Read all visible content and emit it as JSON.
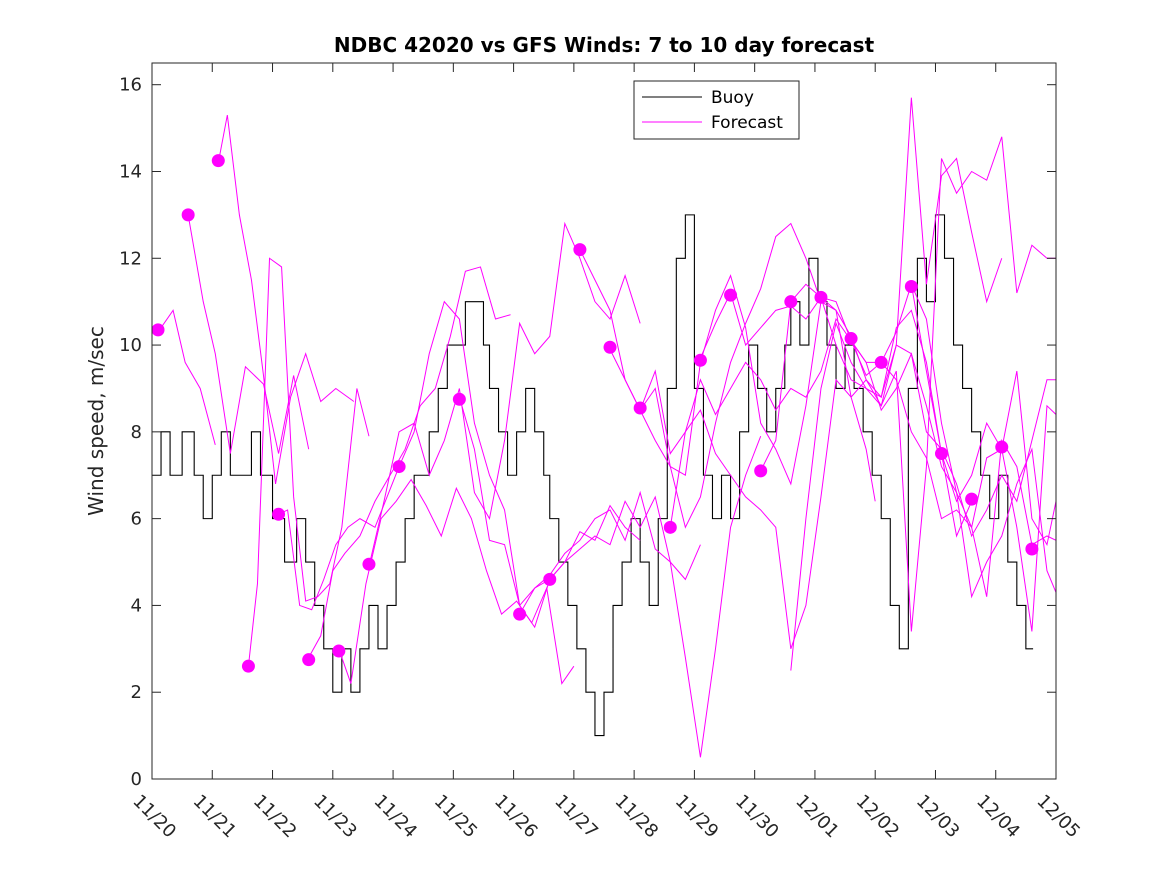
{
  "chart_data": {
    "type": "line",
    "title": "NDBC 42020 vs GFS Winds: 7 to 10 day forecast",
    "xlabel": "",
    "ylabel": "Wind speed, m/sec",
    "xlim": [
      0,
      15
    ],
    "ylim": [
      0,
      16.5
    ],
    "xticks": [
      0,
      1,
      2,
      3,
      4,
      5,
      6,
      7,
      8,
      9,
      10,
      11,
      12,
      13,
      14,
      15
    ],
    "xtick_labels": [
      "11/20",
      "11/21",
      "11/22",
      "11/23",
      "11/24",
      "11/25",
      "11/26",
      "11/27",
      "11/28",
      "11/29",
      "11/30",
      "12/01",
      "12/02",
      "12/03",
      "12/04",
      "12/05"
    ],
    "yticks": [
      0,
      2,
      4,
      6,
      8,
      10,
      12,
      14,
      16
    ],
    "ytick_labels": [
      "0",
      "2",
      "4",
      "6",
      "8",
      "10",
      "12",
      "14",
      "16"
    ],
    "legend": {
      "position": "top-center",
      "entries": [
        "Buoy",
        "Forecast"
      ]
    },
    "colors": {
      "buoy": "#000000",
      "forecast": "#ff00ff"
    },
    "series": [
      {
        "name": "Buoy",
        "style": "step",
        "x": [
          0,
          0.15,
          0.3,
          0.5,
          0.7,
          0.85,
          1.0,
          1.15,
          1.3,
          1.5,
          1.65,
          1.8,
          2.0,
          2.2,
          2.4,
          2.55,
          2.7,
          2.85,
          3.0,
          3.15,
          3.3,
          3.45,
          3.6,
          3.75,
          3.9,
          4.05,
          4.2,
          4.35,
          4.5,
          4.6,
          4.75,
          4.9,
          5.05,
          5.2,
          5.35,
          5.5,
          5.6,
          5.75,
          5.9,
          6.05,
          6.2,
          6.35,
          6.5,
          6.6,
          6.75,
          6.9,
          7.05,
          7.2,
          7.35,
          7.5,
          7.65,
          7.8,
          7.95,
          8.1,
          8.25,
          8.4,
          8.55,
          8.7,
          8.85,
          9.0,
          9.15,
          9.3,
          9.45,
          9.6,
          9.75,
          9.9,
          10.05,
          10.2,
          10.35,
          10.5,
          10.6,
          10.75,
          10.9,
          11.05,
          11.2,
          11.35,
          11.5,
          11.65,
          11.8,
          11.95,
          12.1,
          12.25,
          12.4,
          12.55,
          12.7,
          12.85,
          13.0,
          13.15,
          13.3,
          13.45,
          13.6,
          13.75,
          13.9,
          14.05,
          14.2,
          14.35,
          14.5
        ],
        "values": [
          7,
          8,
          7,
          8,
          7,
          6,
          7,
          8,
          7,
          7,
          8,
          7,
          6,
          5,
          6,
          5,
          4,
          3,
          2,
          3,
          2,
          3,
          4,
          3,
          4,
          5,
          6,
          7,
          7,
          8,
          9,
          10,
          10,
          11,
          11,
          10,
          9,
          8,
          7,
          8,
          9,
          8,
          7,
          6,
          5,
          4,
          3,
          2,
          1,
          2,
          4,
          5,
          6,
          5,
          4,
          6,
          9,
          12,
          13,
          9,
          7,
          6,
          7,
          6,
          8,
          10,
          9,
          8,
          9,
          10,
          11,
          10,
          12,
          11,
          10,
          9,
          10,
          9,
          8,
          7,
          6,
          4,
          3,
          9,
          12,
          11,
          13,
          12,
          10,
          9,
          8,
          7,
          6,
          7,
          5,
          4,
          3
        ]
      },
      {
        "name": "Forecast",
        "x": [
          0.1,
          0.35,
          0.55,
          0.8,
          1.05
        ],
        "values": [
          10.3,
          10.8,
          9.6,
          9.0,
          7.7
        ]
      },
      {
        "name": "Forecast",
        "x": [
          0.6,
          0.85,
          1.05,
          1.3,
          1.55,
          1.85,
          2.1,
          2.35,
          2.6
        ],
        "values": [
          13.0,
          11.0,
          9.8,
          7.5,
          9.5,
          9.1,
          7.5,
          9.3,
          7.6
        ]
      },
      {
        "name": "Forecast",
        "x": [
          1.1,
          1.25,
          1.45,
          1.65,
          1.85,
          2.05,
          2.3,
          2.55,
          2.8,
          3.05,
          3.35
        ],
        "values": [
          14.2,
          15.3,
          13.0,
          11.5,
          9.3,
          6.8,
          8.8,
          9.8,
          8.7,
          9.0,
          8.7
        ]
      },
      {
        "name": "Forecast",
        "x": [
          1.6,
          1.75,
          1.95,
          2.15,
          2.35,
          2.55,
          2.75,
          2.95,
          3.15,
          3.4,
          3.6
        ],
        "values": [
          2.6,
          4.5,
          12.0,
          11.8,
          6.5,
          4.1,
          4.2,
          4.5,
          5.8,
          9.0,
          7.9
        ]
      },
      {
        "name": "Forecast",
        "x": [
          2.1,
          2.25,
          2.45,
          2.65,
          2.85,
          3.05,
          3.25,
          3.45,
          3.7,
          3.9,
          4.1
        ],
        "values": [
          6.1,
          6.2,
          4.0,
          3.9,
          4.6,
          5.4,
          5.8,
          6.0,
          5.8,
          6.5,
          7.2
        ]
      },
      {
        "name": "Forecast",
        "x": [
          2.6,
          2.8,
          3.0,
          3.2,
          3.45,
          3.7,
          3.95,
          4.2,
          4.45,
          4.7,
          4.95,
          5.2,
          5.45,
          5.7,
          5.95
        ],
        "values": [
          2.8,
          3.3,
          4.8,
          5.2,
          5.6,
          6.4,
          7.0,
          7.6,
          8.6,
          9.0,
          10.2,
          11.7,
          11.8,
          10.6,
          10.7
        ]
      },
      {
        "name": "Forecast",
        "x": [
          3.1,
          3.3,
          3.55,
          3.8,
          4.05,
          4.3,
          4.55,
          4.8,
          5.05,
          5.3,
          5.55,
          5.8,
          6.05,
          6.3,
          6.55,
          6.8,
          7.0
        ],
        "values": [
          3.0,
          2.2,
          4.5,
          6.0,
          6.4,
          6.9,
          6.3,
          5.6,
          6.7,
          6.0,
          4.8,
          3.8,
          4.1,
          3.6,
          4.4,
          2.2,
          2.6
        ]
      },
      {
        "name": "Forecast",
        "x": [
          3.6,
          3.85,
          4.1,
          4.35,
          4.6,
          4.85,
          5.1,
          5.35,
          5.6,
          5.85,
          6.1,
          6.35,
          6.6,
          6.85,
          7.1,
          7.35,
          7.6,
          7.85,
          8.1
        ],
        "values": [
          4.9,
          6.4,
          8.0,
          8.2,
          7.0,
          7.8,
          9.0,
          6.6,
          6.0,
          7.8,
          10.5,
          9.8,
          10.2,
          12.8,
          12.0,
          11.0,
          10.6,
          11.6,
          10.5
        ]
      },
      {
        "name": "Forecast",
        "x": [
          4.1,
          4.35,
          4.6,
          4.85,
          5.1,
          5.35,
          5.6,
          5.85,
          6.1,
          6.35,
          6.6,
          6.85,
          7.1,
          7.35,
          7.6,
          7.85,
          8.1
        ],
        "values": [
          7.2,
          8.0,
          9.8,
          11.0,
          10.6,
          8.2,
          7.0,
          6.2,
          4.0,
          3.5,
          4.6,
          5.0,
          5.7,
          5.5,
          6.3,
          5.8,
          5.5
        ]
      },
      {
        "name": "Forecast",
        "x": [
          5.1,
          5.35,
          5.6,
          5.85,
          6.1,
          6.35,
          6.6,
          6.85,
          7.1,
          7.35,
          7.6,
          7.85,
          8.1,
          8.35,
          8.6,
          8.85,
          9.1
        ],
        "values": [
          8.8,
          7.6,
          5.5,
          5.4,
          4.0,
          4.4,
          4.7,
          5.2,
          5.5,
          6.0,
          6.2,
          5.5,
          6.6,
          5.3,
          5.0,
          4.6,
          5.4
        ]
      },
      {
        "name": "Forecast",
        "x": [
          6.1,
          6.35,
          6.6,
          6.85,
          7.1,
          7.35,
          7.6,
          7.85,
          8.1,
          8.35,
          8.6,
          8.85,
          9.1,
          9.35,
          9.6,
          9.85,
          10.1
        ],
        "values": [
          3.8,
          4.4,
          4.6,
          5.0,
          5.3,
          5.6,
          5.4,
          6.4,
          5.8,
          6.5,
          5.0,
          2.8,
          0.5,
          3.0,
          5.8,
          7.0,
          7.9
        ]
      },
      {
        "name": "Forecast",
        "x": [
          7.1,
          7.35,
          7.6,
          7.85,
          8.1,
          8.35,
          8.6,
          8.85,
          9.1,
          9.35,
          9.6,
          9.85,
          10.1,
          10.35,
          10.6,
          10.85,
          11.1
        ],
        "values": [
          12.2,
          11.5,
          10.8,
          9.2,
          8.5,
          7.8,
          7.2,
          5.8,
          6.5,
          8.2,
          9.6,
          10.5,
          11.3,
          12.5,
          12.8,
          12.0,
          11.0
        ]
      },
      {
        "name": "Forecast",
        "x": [
          7.6,
          7.85,
          8.1,
          8.35,
          8.6,
          8.85,
          9.1,
          9.35,
          9.6,
          9.85,
          10.1,
          10.35,
          10.6,
          10.85,
          11.1,
          11.35,
          11.6,
          11.85,
          12.0
        ],
        "values": [
          9.9,
          9.2,
          8.5,
          9.0,
          7.2,
          7.0,
          9.6,
          10.8,
          11.6,
          10.4,
          8.2,
          7.6,
          6.8,
          8.6,
          11.0,
          10.8,
          8.8,
          7.6,
          6.4
        ]
      },
      {
        "name": "Forecast",
        "x": [
          8.1,
          8.35,
          8.6,
          8.85,
          9.1,
          9.35,
          9.6,
          9.85,
          10.1,
          10.35,
          10.6,
          10.85,
          11.1,
          11.35,
          11.6,
          11.85,
          12.1
        ],
        "values": [
          8.5,
          9.4,
          7.5,
          8.0,
          9.2,
          8.4,
          9.0,
          9.6,
          9.2,
          8.5,
          9.0,
          8.8,
          9.4,
          10.6,
          10.1,
          9.3,
          9.6
        ]
      },
      {
        "name": "Forecast",
        "x": [
          8.6,
          8.85,
          9.1,
          9.35,
          9.6,
          9.85,
          10.1,
          10.35,
          10.6,
          10.85,
          11.1,
          11.35,
          11.6,
          11.85,
          12.1,
          12.35,
          12.6,
          12.85,
          13.1
        ],
        "values": [
          5.8,
          8.0,
          8.5,
          7.5,
          7.0,
          6.5,
          6.2,
          5.8,
          3.0,
          4.0,
          6.5,
          9.2,
          8.8,
          9.2,
          8.8,
          10.4,
          10.8,
          9.6,
          7.5
        ]
      },
      {
        "name": "Forecast",
        "x": [
          9.1,
          9.35,
          9.6,
          9.85,
          10.1,
          10.35,
          10.6,
          10.85,
          11.1,
          11.35,
          11.6,
          11.85,
          12.1,
          12.35,
          12.6,
          12.85,
          13.1,
          13.35,
          13.6
        ],
        "values": [
          9.7,
          10.5,
          11.2,
          10.0,
          10.4,
          10.8,
          10.9,
          10.6,
          11.1,
          11.0,
          10.1,
          9.6,
          9.6,
          10.3,
          11.4,
          9.4,
          7.5,
          5.6,
          6.4
        ]
      },
      {
        "name": "Forecast",
        "x": [
          10.1,
          10.35,
          10.6,
          10.85,
          11.1,
          11.35,
          11.6,
          11.85,
          12.1,
          12.35,
          12.6,
          12.85,
          13.1,
          13.35,
          13.6,
          13.85,
          14.1
        ],
        "values": [
          7.1,
          7.8,
          11.0,
          11.4,
          11.1,
          10.0,
          9.2,
          9.0,
          8.6,
          10.0,
          15.7,
          11.4,
          13.9,
          14.3,
          12.6,
          11.0,
          12.0
        ]
      },
      {
        "name": "Forecast",
        "x": [
          10.6,
          10.85,
          11.1,
          11.35,
          11.6,
          11.85,
          12.1,
          12.35,
          12.6,
          12.85,
          13.1,
          13.35,
          13.6,
          13.85,
          14.1,
          14.35,
          14.6,
          14.85,
          15.0
        ],
        "values": [
          2.5,
          6.0,
          9.0,
          10.5,
          9.6,
          9.0,
          8.8,
          10.0,
          9.8,
          8.0,
          7.6,
          6.8,
          5.6,
          6.2,
          7.0,
          6.4,
          7.8,
          9.2,
          9.2
        ]
      },
      {
        "name": "Forecast",
        "x": [
          11.1,
          11.35,
          11.6,
          11.85,
          12.1,
          12.35,
          12.6,
          12.85,
          13.1,
          13.35,
          13.6,
          13.85,
          14.1,
          14.35,
          14.6,
          14.85,
          15.0
        ],
        "values": [
          11.1,
          10.8,
          10.2,
          9.2,
          8.6,
          9.4,
          3.4,
          7.2,
          14.3,
          13.5,
          14.0,
          13.8,
          14.8,
          11.2,
          12.3,
          12.0,
          12.0
        ]
      },
      {
        "name": "Forecast",
        "x": [
          11.6,
          11.85,
          12.1,
          12.35,
          12.6,
          12.85,
          13.1,
          13.35,
          13.6,
          13.85,
          14.1,
          14.35,
          14.6,
          14.85,
          15.0
        ],
        "values": [
          10.1,
          9.6,
          8.5,
          9.0,
          9.8,
          8.6,
          7.2,
          6.6,
          4.2,
          5.0,
          5.6,
          6.8,
          7.6,
          4.8,
          4.3
        ]
      },
      {
        "name": "Forecast",
        "x": [
          12.1,
          12.35,
          12.6,
          12.85,
          13.1,
          13.35,
          13.6,
          13.85,
          14.1,
          14.35,
          14.6,
          14.85,
          15.0
        ],
        "values": [
          9.6,
          9.2,
          8.0,
          7.4,
          6.0,
          6.2,
          5.8,
          4.2,
          7.8,
          7.2,
          5.4,
          5.6,
          5.5
        ]
      },
      {
        "name": "Forecast",
        "x": [
          12.6,
          12.85,
          13.1,
          13.35,
          13.6,
          13.85,
          14.1,
          14.35,
          14.6,
          14.85,
          15.0
        ],
        "values": [
          11.4,
          10.6,
          8.2,
          6.6,
          5.8,
          7.4,
          7.6,
          5.8,
          3.4,
          8.6,
          8.4
        ]
      },
      {
        "name": "Forecast",
        "x": [
          13.1,
          13.35,
          13.6,
          13.85,
          14.1,
          14.35,
          14.6,
          14.85,
          15.0
        ],
        "values": [
          7.5,
          6.4,
          7.0,
          8.2,
          7.6,
          9.4,
          6.0,
          5.4,
          6.4
        ]
      }
    ],
    "forecast_markers": {
      "x": [
        0.1,
        0.6,
        1.1,
        1.6,
        2.1,
        2.6,
        3.1,
        3.6,
        4.1,
        5.1,
        6.1,
        6.6,
        7.1,
        7.6,
        8.1,
        8.6,
        9.1,
        9.6,
        10.1,
        10.6,
        11.1,
        11.6,
        12.1,
        12.6,
        13.1,
        13.6,
        14.1,
        14.6
      ],
      "values": [
        10.35,
        13.0,
        14.25,
        2.6,
        6.1,
        2.75,
        2.95,
        4.95,
        7.2,
        8.75,
        3.8,
        4.6,
        12.2,
        9.95,
        8.55,
        5.8,
        9.65,
        11.15,
        7.1,
        11.0,
        11.1,
        10.15,
        9.6,
        11.35,
        7.5,
        6.45,
        7.65,
        5.3
      ]
    }
  }
}
